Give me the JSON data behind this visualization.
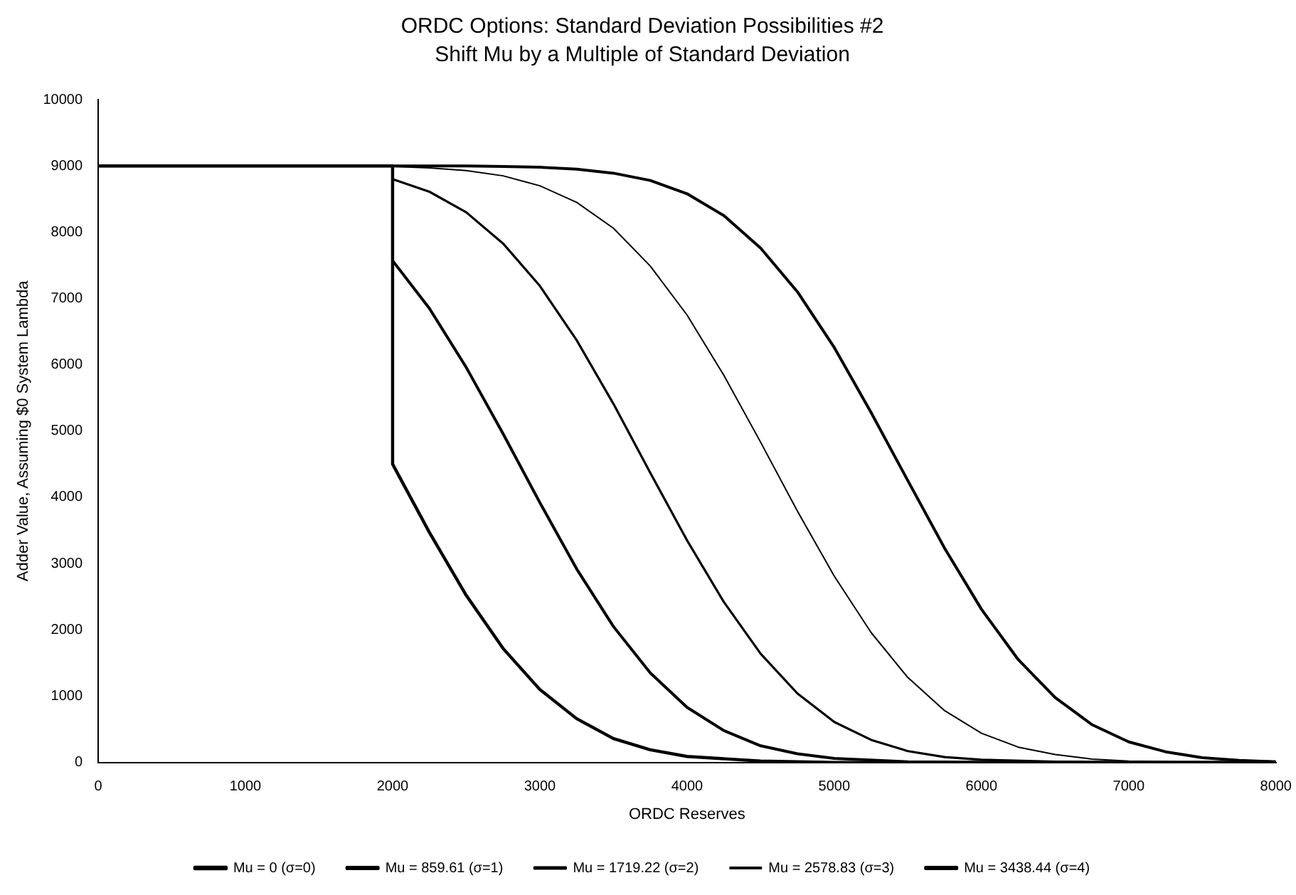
{
  "chart_data": {
    "type": "line",
    "title": "ORDC Options: Standard Deviation Possibilities #2",
    "subtitle": "Shift Mu by a Multiple of Standard Deviation",
    "xlabel": "ORDC Reserves",
    "ylabel": "Adder Value, Assuming $0 System Lambda",
    "xlim": [
      0,
      8000
    ],
    "xticks": [
      0,
      1000,
      2000,
      3000,
      4000,
      5000,
      6000,
      7000,
      8000
    ],
    "ylim": [
      0,
      10000
    ],
    "yticks": [
      0,
      1000,
      2000,
      3000,
      4000,
      5000,
      6000,
      7000,
      8000,
      9000,
      10000
    ],
    "grid": false,
    "legend": "bottom",
    "marker": "none",
    "line_style": "solid",
    "series": [
      {
        "name": "Mu = 0 (σ=0)",
        "color": "#000000",
        "x": [
          0,
          2000,
          2000,
          2250,
          2500,
          2750,
          3000,
          3250,
          3500,
          3750,
          4000,
          4500,
          5000,
          6000,
          7000,
          8000
        ],
        "values": [
          9000,
          9000,
          4500,
          3470,
          2520,
          1720,
          1100,
          660,
          360,
          190,
          90,
          20,
          0,
          0,
          0,
          0
        ]
      },
      {
        "name": "Mu = 859.61 (σ=1)",
        "color": "#000000",
        "x": [
          0,
          2000,
          2000,
          2250,
          2500,
          2750,
          3000,
          3250,
          3500,
          3750,
          4000,
          4250,
          4500,
          4750,
          5000,
          5500,
          6000,
          7000,
          8000
        ],
        "values": [
          9000,
          9000,
          7570,
          6850,
          5960,
          4960,
          3920,
          2920,
          2050,
          1350,
          830,
          480,
          250,
          130,
          60,
          10,
          0,
          0,
          0
        ]
      },
      {
        "name": "Mu = 1719.22 (σ=2)",
        "color": "#000000",
        "x": [
          0,
          2000,
          2000,
          2250,
          2500,
          2750,
          3000,
          3250,
          3500,
          3750,
          4000,
          4250,
          4500,
          4750,
          5000,
          5250,
          5500,
          5750,
          6000,
          6500,
          7000,
          8000
        ],
        "values": [
          9000,
          9000,
          8800,
          8610,
          8300,
          7830,
          7190,
          6370,
          5410,
          4370,
          3350,
          2420,
          1640,
          1040,
          610,
          340,
          170,
          80,
          40,
          10,
          0,
          0
        ]
      },
      {
        "name": "Mu = 2578.83 (σ=3)",
        "color": "#000000",
        "x": [
          0,
          2000,
          2000,
          2250,
          2500,
          2750,
          3000,
          3250,
          3500,
          3750,
          4000,
          4250,
          4500,
          4750,
          5000,
          5250,
          5500,
          5750,
          6000,
          6250,
          6500,
          6750,
          7000,
          7500,
          8000
        ],
        "values": [
          9000,
          9000,
          8990,
          8970,
          8930,
          8850,
          8700,
          8450,
          8060,
          7490,
          6750,
          5840,
          4830,
          3790,
          2810,
          1960,
          1280,
          780,
          440,
          230,
          120,
          50,
          20,
          0,
          0
        ]
      },
      {
        "name": "Mu = 3438.44 (σ=4)",
        "color": "#000000",
        "x": [
          0,
          2000,
          2500,
          2750,
          3000,
          3250,
          3500,
          3750,
          4000,
          4250,
          4500,
          4750,
          5000,
          5250,
          5500,
          5750,
          6000,
          6250,
          6500,
          6750,
          7000,
          7250,
          7500,
          7750,
          8000
        ],
        "values": [
          9000,
          9000,
          9000,
          8990,
          8980,
          8950,
          8890,
          8780,
          8580,
          8250,
          7760,
          7100,
          6260,
          5280,
          4250,
          3230,
          2310,
          1550,
          980,
          570,
          310,
          160,
          70,
          30,
          10
        ]
      }
    ]
  }
}
